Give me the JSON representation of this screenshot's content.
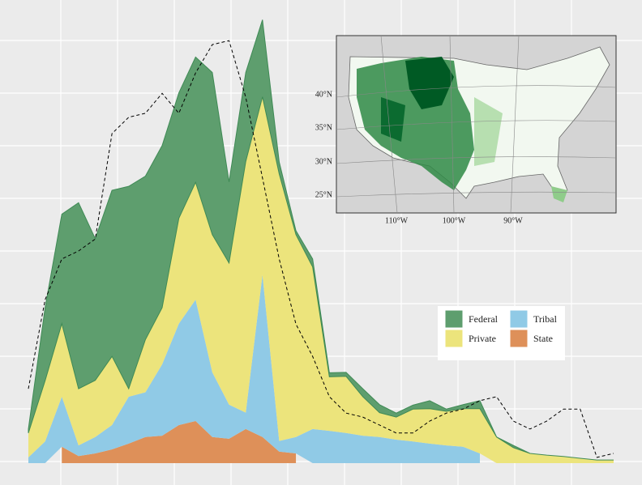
{
  "chart_data": {
    "type": "stacked_area",
    "categories": [
      null,
      null,
      null,
      null,
      null,
      null,
      null,
      null,
      null,
      null,
      null,
      null,
      null,
      null,
      null,
      null,
      null,
      null,
      null,
      null,
      null,
      null,
      null,
      null,
      null,
      null,
      null,
      null,
      null,
      null,
      null,
      null,
      null,
      null,
      null,
      null
    ],
    "ylim": [
      0,
      100
    ],
    "series": [
      {
        "name": "Federal",
        "color": "#5e9e6e",
        "values": [
          0.9,
          16.5,
          24.7,
          42.0,
          32.0,
          37.5,
          45.7,
          36.9,
          36.6,
          28.3,
          28.3,
          36.6,
          18.3,
          20.1,
          17.4,
          2.7,
          0.9,
          1.8,
          0.9,
          0.9,
          1.8,
          1.8,
          0.9,
          0.9,
          1.8,
          0.5,
          0.9,
          1.8,
          0,
          0.5,
          0,
          0,
          0,
          0,
          0,
          0
        ]
      },
      {
        "name": "Private",
        "color": "#ece47c",
        "values": [
          5.5,
          13.7,
          16.5,
          12.8,
          12.8,
          15.5,
          1.8,
          11.9,
          12.8,
          23.8,
          26.5,
          31.1,
          32.0,
          56.7,
          40.2,
          60.3,
          45.7,
          36.6,
          12.2,
          12.8,
          8.8,
          5.5,
          5.1,
          7.3,
          7.9,
          7.7,
          8.6,
          10.1,
          5.9,
          3.5,
          2.2,
          1.8,
          1.5,
          1.1,
          0.7,
          0.7
        ]
      },
      {
        "name": "Tribal",
        "color": "#90cae6",
        "values": [
          1.3,
          4.9,
          11.3,
          2.4,
          3.7,
          5.5,
          10.6,
          10.1,
          16.1,
          22.9,
          27.4,
          14.6,
          7.7,
          3.7,
          36.6,
          2.4,
          3.7,
          7.7,
          7.3,
          6.8,
          6.2,
          5.9,
          5.3,
          4.9,
          4.4,
          4.0,
          3.7,
          2.2,
          null,
          null,
          null,
          null,
          null,
          null,
          null,
          null
        ]
      },
      {
        "name": "State",
        "color": "#de9059",
        "values": [
          null,
          null,
          3.7,
          1.6,
          2.2,
          3.1,
          4.4,
          5.9,
          6.2,
          8.6,
          9.5,
          5.9,
          5.5,
          7.7,
          5.9,
          2.6,
          2.2,
          null,
          null,
          null,
          null,
          null,
          null,
          null,
          null,
          null,
          null,
          null,
          null,
          null,
          null,
          null,
          null,
          null,
          null,
          null
        ]
      }
    ],
    "line": {
      "color": "#000000",
      "style": "dashed",
      "values": [
        16.8,
        36.9,
        46.1,
        47.9,
        50.6,
        74.4,
        78.1,
        79.0,
        83.5,
        79.0,
        88.1,
        94.5,
        95.4,
        82.6,
        64.4,
        46.1,
        31.4,
        24.1,
        15.0,
        11.3,
        10.4,
        8.6,
        6.8,
        6.8,
        9.5,
        11.3,
        12.2,
        14.1,
        15.0,
        9.5,
        7.7,
        9.5,
        12.2,
        12.2,
        1.3,
        2.2
      ]
    },
    "legend_columns": 2,
    "inset": {
      "lat_labels": [
        "40°N",
        "35°N",
        "30°N",
        "25°N"
      ],
      "lon_labels": [
        "110°W",
        "100°W",
        "90°W"
      ]
    }
  }
}
